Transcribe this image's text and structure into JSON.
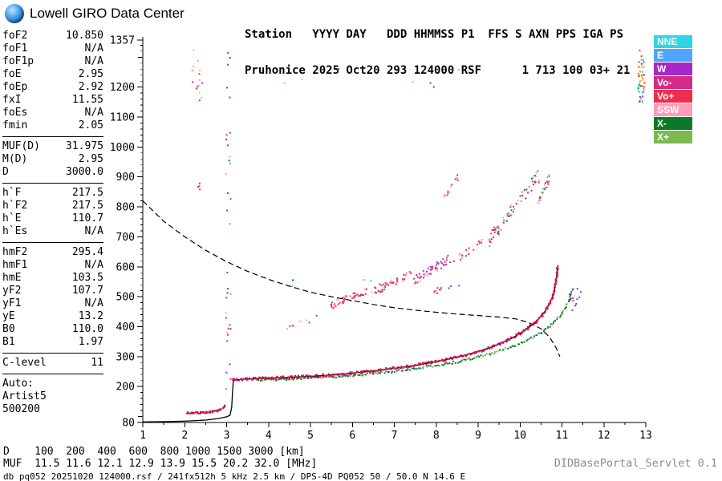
{
  "header": {
    "brand": "Lowell GIRO Data Center",
    "station_line1": "Station   YYYY DAY   DDD HHMMSS P1  FFS S AXN PPS IGA PS",
    "station_line2": "Pruhonice 2025 Oct20 293 124000 RSF      1 713 100 03+ 21"
  },
  "params": {
    "groups": [
      {
        "rows": [
          [
            "foF2",
            "10.850"
          ],
          [
            "foF1",
            "N/A"
          ],
          [
            "foF1p",
            "N/A"
          ],
          [
            "foE",
            "2.95"
          ],
          [
            "foEp",
            "2.92"
          ],
          [
            "fxI",
            "11.55"
          ],
          [
            "foEs",
            "N/A"
          ],
          [
            "fmin",
            "2.05"
          ]
        ]
      },
      {
        "rows": [
          [
            "MUF(D)",
            "31.975"
          ],
          [
            "M(D)",
            "2.95"
          ],
          [
            "D",
            "3000.0"
          ]
        ]
      },
      {
        "rows": [
          [
            "h`F",
            "217.5"
          ],
          [
            "h`F2",
            "217.5"
          ],
          [
            "h`E",
            "110.7"
          ],
          [
            "h`Es",
            "N/A"
          ]
        ]
      },
      {
        "rows": [
          [
            "hmF2",
            "295.4"
          ],
          [
            "hmF1",
            "N/A"
          ],
          [
            "hmE",
            "103.5"
          ],
          [
            "yF2",
            "107.7"
          ],
          [
            "yF1",
            "N/A"
          ],
          [
            "yE",
            "13.2"
          ],
          [
            "B0",
            "110.0"
          ],
          [
            "B1",
            "1.97"
          ]
        ]
      },
      {
        "rows": [
          [
            "C-level",
            "11"
          ]
        ]
      },
      {
        "rows": [
          [
            "Auto:",
            ""
          ],
          [
            "Artist5",
            ""
          ],
          [
            "500200",
            ""
          ]
        ]
      }
    ]
  },
  "legend": {
    "items": [
      {
        "label": "NNE",
        "color": "#2FD4E6"
      },
      {
        "label": "E",
        "color": "#4DA6FF"
      },
      {
        "label": "W",
        "color": "#A827C9"
      },
      {
        "label": "Vo-",
        "color": "#D42B88"
      },
      {
        "label": "Vo+",
        "color": "#EE2E4E"
      },
      {
        "label": "SSW",
        "color": "#FF9DBB"
      },
      {
        "label": "X-",
        "color": "#0A7A28"
      },
      {
        "label": "X+",
        "color": "#7CB94E"
      }
    ]
  },
  "footer": {
    "d_line": "D    100  200  400  600  800 1000 1500 3000 [km]",
    "muf_line": "MUF  11.5 11.6 12.1 12.9 13.9 15.5 20.2 32.0 [MHz]",
    "info_line": "db pq052 20251020 124000.rsf / 241fx512h 5 kHz 2.5 km / DPS-4D PQ052 50 / 50.0 N 14.6 E",
    "servlet": "DIDBasePortal_Servlet 0.1"
  },
  "chart_data": {
    "type": "scatter",
    "title": "Pruhonice ionogram 2025 Oct20 124000",
    "xlabel": "[MHz]",
    "ylabel": "[km]",
    "xlim": [
      1,
      13
    ],
    "ylim": [
      80,
      1357
    ],
    "x_ticks": [
      1,
      2,
      3,
      4,
      5,
      6,
      7,
      8,
      9,
      10,
      11,
      12,
      13
    ],
    "y_ticks": [
      80,
      200,
      300,
      400,
      500,
      600,
      700,
      800,
      900,
      1000,
      1100,
      1200,
      1357
    ],
    "colors": {
      "o_trace": "#C81040",
      "o_trace_alt": "#C02890",
      "x_trace": "#1A7A2E",
      "x_trace_alt": "#7CB94E",
      "line": "#000000"
    },
    "muf_curve_dashed": [
      [
        1,
        820
      ],
      [
        1.5,
        752
      ],
      [
        2,
        700
      ],
      [
        2.5,
        655
      ],
      [
        3,
        617
      ],
      [
        3.5,
        585
      ],
      [
        4,
        558
      ],
      [
        4.5,
        535
      ],
      [
        5,
        515
      ],
      [
        5.5,
        500
      ],
      [
        6,
        487
      ],
      [
        6.5,
        474
      ],
      [
        7,
        463
      ],
      [
        7.5,
        455
      ],
      [
        8,
        448
      ],
      [
        8.5,
        442
      ],
      [
        9,
        437
      ],
      [
        9.5,
        432
      ],
      [
        9.9,
        426
      ],
      [
        10.2,
        414
      ],
      [
        10.5,
        393
      ],
      [
        10.7,
        366
      ],
      [
        10.85,
        332
      ],
      [
        10.95,
        300
      ]
    ],
    "profile_bottom": [
      [
        1,
        82
      ],
      [
        1.6,
        83
      ],
      [
        2.1,
        85
      ],
      [
        2.5,
        88
      ],
      [
        2.8,
        93
      ],
      [
        3.0,
        99
      ],
      [
        3.08,
        104
      ],
      [
        3.12,
        130
      ],
      [
        3.14,
        180
      ],
      [
        3.16,
        221
      ]
    ],
    "o_trace_line": [
      [
        3.16,
        222
      ],
      [
        3.5,
        225
      ],
      [
        4,
        228
      ],
      [
        4.5,
        231
      ],
      [
        5,
        234
      ],
      [
        5.5,
        239
      ],
      [
        6,
        245
      ],
      [
        6.5,
        252
      ],
      [
        7,
        261
      ],
      [
        7.5,
        271
      ],
      [
        8,
        283
      ],
      [
        8.5,
        298
      ],
      [
        9,
        317
      ],
      [
        9.4,
        336
      ],
      [
        9.8,
        361
      ],
      [
        10.1,
        386
      ],
      [
        10.35,
        412
      ],
      [
        10.55,
        442
      ],
      [
        10.7,
        474
      ],
      [
        10.8,
        510
      ],
      [
        10.86,
        552
      ],
      [
        10.9,
        600
      ]
    ],
    "e_trace": [
      [
        2.05,
        113
      ],
      [
        2.15,
        112
      ],
      [
        2.25,
        112
      ],
      [
        2.35,
        113
      ],
      [
        2.45,
        113
      ],
      [
        2.55,
        114
      ],
      [
        2.65,
        116
      ],
      [
        2.75,
        118
      ],
      [
        2.85,
        122
      ],
      [
        2.92,
        128
      ],
      [
        2.96,
        137
      ]
    ],
    "x_trace_offset_mhz": 0.42,
    "x_trace_range": [
      3.7,
      11.35
    ],
    "x_trace_max_height": 520,
    "noise_clusters": [
      {
        "x": [
          2.15,
          2.42
        ],
        "y": [
          1150,
          1325
        ],
        "n": 16,
        "mode": "box",
        "colors": [
          "#EE2E4E",
          "#FF9DBB",
          "#D42B88",
          "#FFCC00"
        ]
      },
      {
        "x": [
          2.28,
          2.45
        ],
        "y": [
          855,
          900
        ],
        "n": 4,
        "mode": "box",
        "colors": [
          "#EE2E4E",
          "#D42B88"
        ]
      },
      {
        "x": [
          2.98,
          3.12
        ],
        "y": [
          140,
          1330
        ],
        "n": 34,
        "mode": "box",
        "colors": [
          "#EE2E4E",
          "#1A7A2E",
          "#4DA6FF",
          "#D42B88",
          "#FF9DBB",
          "#8833CC"
        ]
      },
      {
        "x": [
          4.3,
          5.2
        ],
        "y": [
          390,
          430
        ],
        "n": 8,
        "mode": "band",
        "spread": 20,
        "colors": [
          "#D42B88",
          "#FF9DBB"
        ]
      },
      {
        "x": [
          5.45,
          6.35
        ],
        "y": [
          468,
          522
        ],
        "n": 46,
        "mode": "band",
        "spread": 26,
        "colors": [
          "#D42B88",
          "#EE2E4E",
          "#FF9DBB"
        ]
      },
      {
        "x": [
          6.45,
          7.4
        ],
        "y": [
          512,
          575
        ],
        "n": 48,
        "mode": "band",
        "spread": 28,
        "colors": [
          "#D42B88",
          "#EE2E4E",
          "#FF9DBB"
        ]
      },
      {
        "x": [
          7.45,
          8.35
        ],
        "y": [
          552,
          628
        ],
        "n": 50,
        "mode": "band",
        "spread": 30,
        "colors": [
          "#D42B88",
          "#EE2E4E",
          "#FF9DBB",
          "#8833CC"
        ]
      },
      {
        "x": [
          8.4,
          9.1
        ],
        "y": [
          620,
          680
        ],
        "n": 20,
        "mode": "band",
        "spread": 25,
        "colors": [
          "#D42B88",
          "#FF9DBB",
          "#EE2E4E"
        ]
      },
      {
        "x": [
          8.18,
          8.55
        ],
        "y": [
          835,
          905
        ],
        "n": 16,
        "mode": "band",
        "spread": 25,
        "colors": [
          "#D42B88",
          "#FF9DBB",
          "#EE2E4E"
        ]
      },
      {
        "x": [
          9.25,
          10.45
        ],
        "y": [
          685,
          905
        ],
        "n": 70,
        "mode": "band",
        "spread": 45,
        "colors": [
          "#D42B88",
          "#1A7A2E",
          "#EE2E4E",
          "#7CB94E",
          "#FF9DBB"
        ]
      },
      {
        "x": [
          10.42,
          10.72
        ],
        "y": [
          800,
          908
        ],
        "n": 26,
        "mode": "band",
        "spread": 30,
        "colors": [
          "#1A7A2E",
          "#7CB94E",
          "#D42B88",
          "#FF9DBB"
        ]
      },
      {
        "x": [
          12.82,
          12.98
        ],
        "y": [
          1145,
          1330
        ],
        "n": 46,
        "mode": "box",
        "colors": [
          "#EE2E4E",
          "#FFCC00",
          "#1A7A2E",
          "#2FD4E6",
          "#D42B88",
          "#FF8800"
        ]
      },
      {
        "x": [
          3.9,
          8.6
        ],
        "y": [
          1195,
          1265
        ],
        "n": 7,
        "mode": "box",
        "colors": [
          "#1A7A2E",
          "#4DA6FF",
          "#FF9DBB"
        ]
      },
      {
        "x": [
          11.18,
          11.45
        ],
        "y": [
          450,
          548
        ],
        "n": 14,
        "mode": "box",
        "colors": [
          "#8833CC",
          "#4455EE",
          "#D42B88"
        ]
      },
      {
        "x": [
          4.1,
          7.3
        ],
        "y": [
          515,
          560
        ],
        "n": 5,
        "mode": "box",
        "colors": [
          "#223388",
          "#2FD4E6"
        ]
      },
      {
        "x": [
          7.95,
          8.12
        ],
        "y": [
          510,
          548
        ],
        "n": 7,
        "mode": "box",
        "colors": [
          "#EE2E4E",
          "#D42B88"
        ]
      },
      {
        "x": [
          8.3,
          8.6
        ],
        "y": [
          520,
          545
        ],
        "n": 3,
        "mode": "box",
        "colors": [
          "#4455EE"
        ]
      }
    ]
  }
}
